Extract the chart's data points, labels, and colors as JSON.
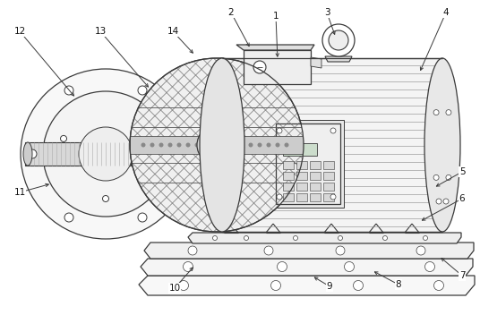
{
  "background_color": "#ffffff",
  "line_color": "#3a3a3a",
  "figsize": [
    5.36,
    3.52
  ],
  "dpi": 100,
  "lw_main": 0.9,
  "lw_thin": 0.5,
  "lw_label": 0.6,
  "labels": [
    [
      "1",
      308,
      18,
      310,
      67
    ],
    [
      "2",
      258,
      14,
      280,
      55
    ],
    [
      "3",
      365,
      14,
      375,
      42
    ],
    [
      "4",
      498,
      14,
      468,
      82
    ],
    [
      "5",
      516,
      192,
      484,
      210
    ],
    [
      "6",
      516,
      222,
      468,
      248
    ],
    [
      "7",
      516,
      308,
      490,
      286
    ],
    [
      "8",
      445,
      318,
      415,
      302
    ],
    [
      "9",
      368,
      320,
      348,
      308
    ],
    [
      "10",
      195,
      322,
      218,
      296
    ],
    [
      "11",
      22,
      215,
      58,
      205
    ],
    [
      "12",
      22,
      35,
      85,
      110
    ],
    [
      "13",
      112,
      35,
      168,
      100
    ],
    [
      "14",
      193,
      35,
      218,
      62
    ]
  ]
}
